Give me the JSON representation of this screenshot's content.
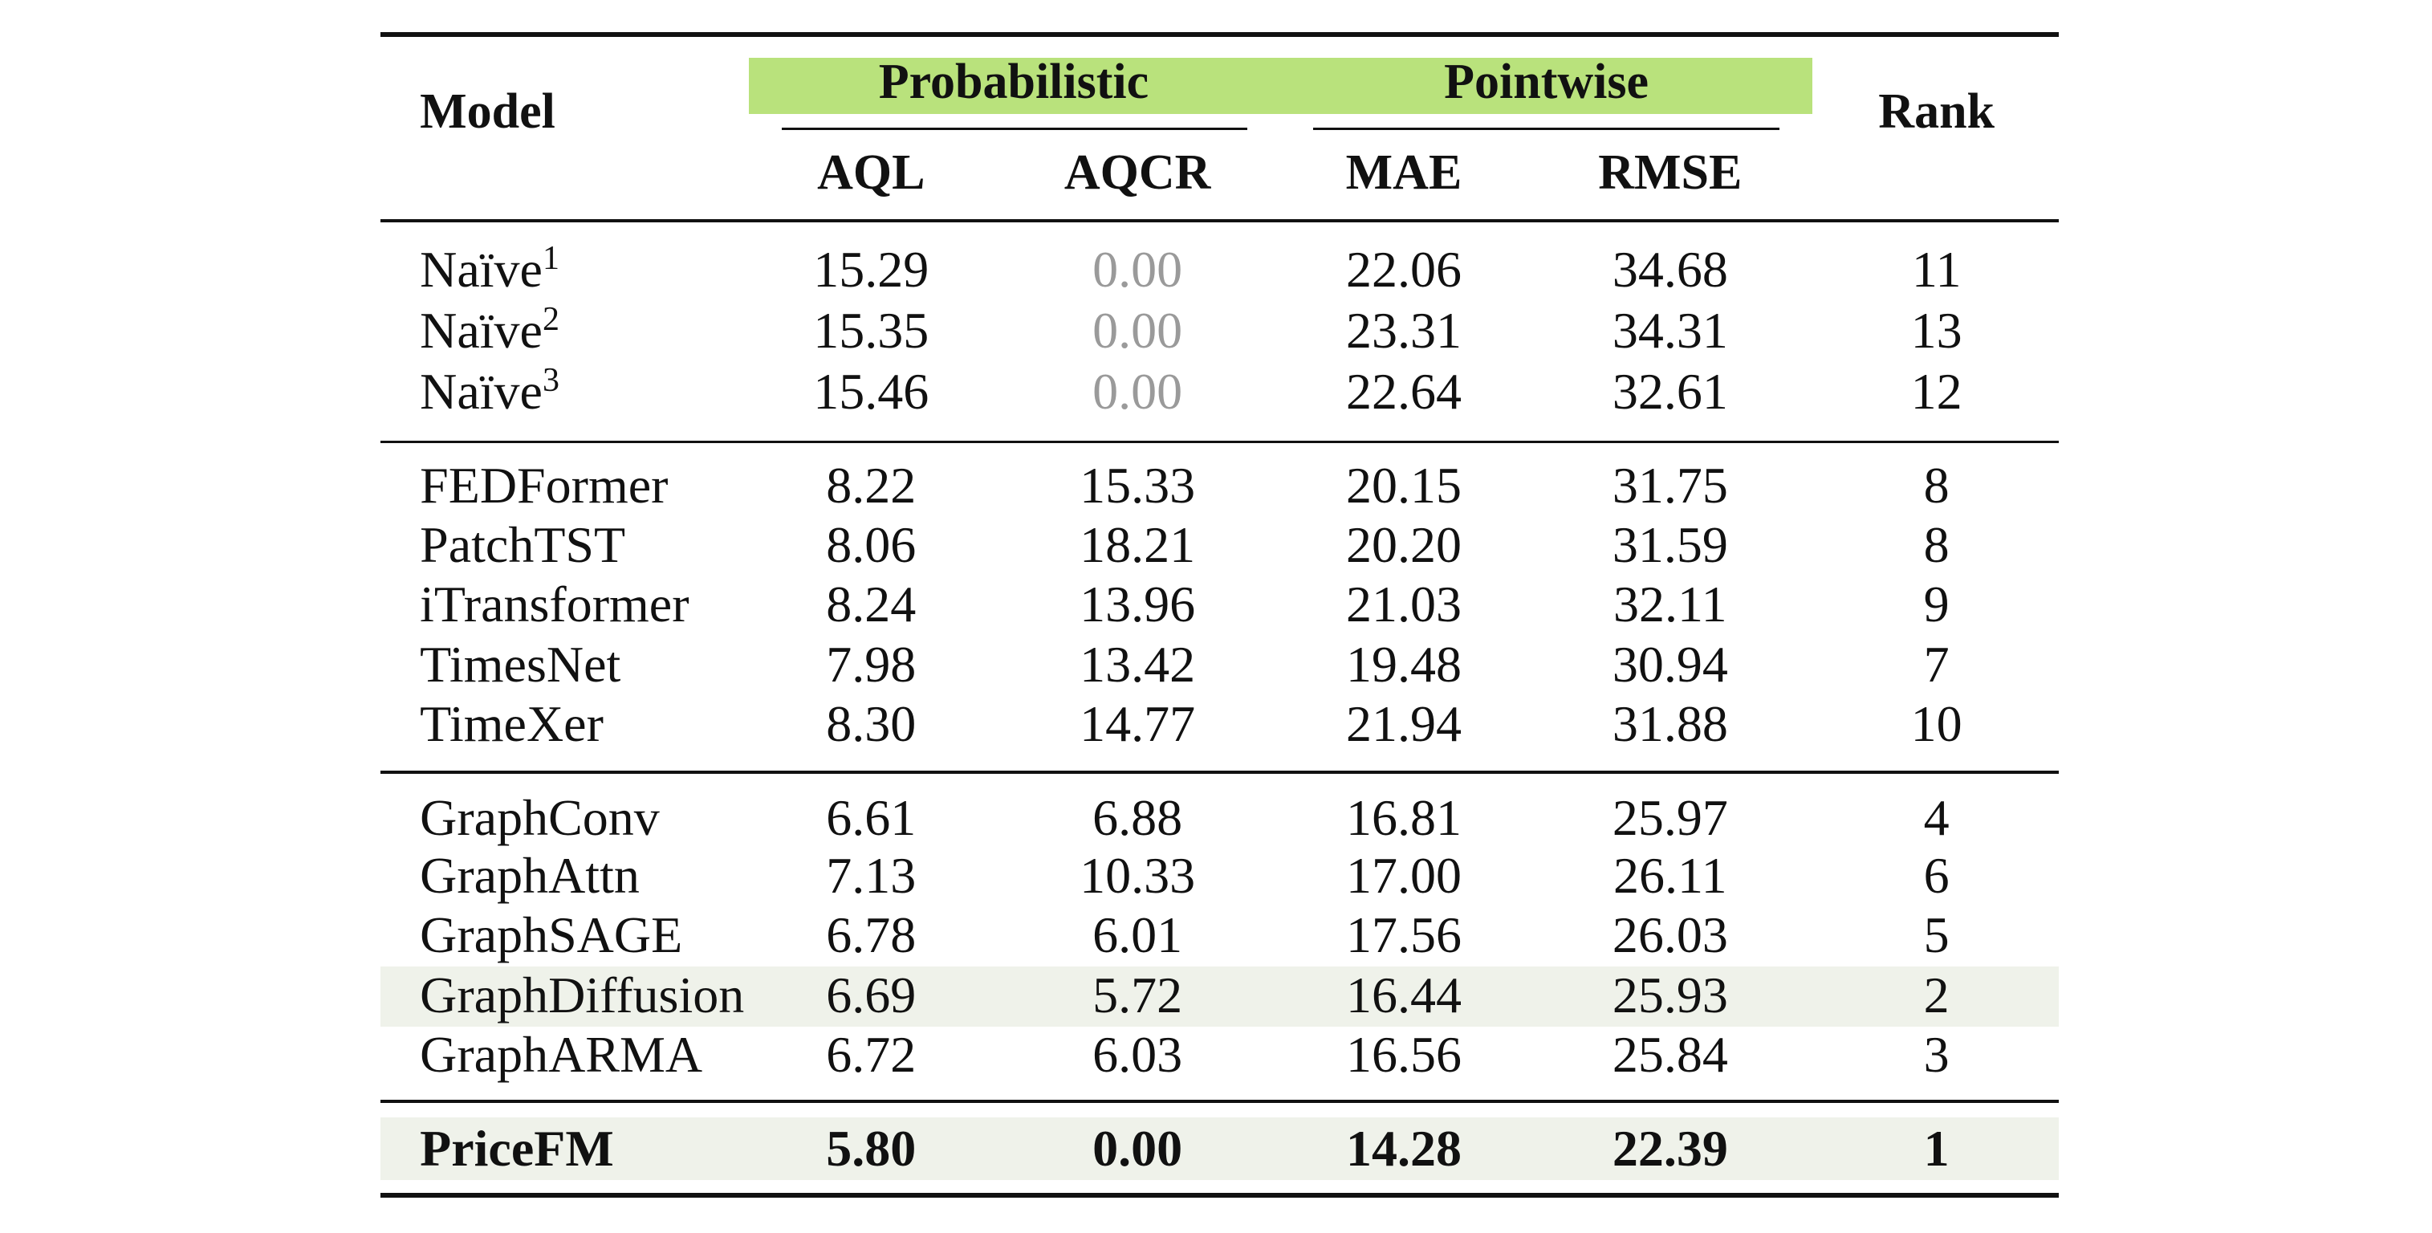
{
  "table": {
    "header": {
      "model": "Model",
      "groups": [
        "Probabilistic",
        "Pointwise"
      ],
      "metrics": [
        "AQL",
        "AQCR",
        "MAE",
        "RMSE"
      ],
      "rank": "Rank"
    },
    "sections": [
      [
        {
          "model": "Naïve",
          "note": "1",
          "cells": [
            "15.29",
            "0.00",
            "22.06",
            "34.68"
          ],
          "rank": "11"
        },
        {
          "model": "Naïve",
          "note": "2",
          "cells": [
            "15.35",
            "0.00",
            "23.31",
            "34.31"
          ],
          "rank": "13"
        },
        {
          "model": "Naïve",
          "note": "3",
          "cells": [
            "15.46",
            "0.00",
            "22.64",
            "32.61"
          ],
          "rank": "12"
        }
      ],
      [
        {
          "model": "FEDFormer",
          "cells": [
            "8.22",
            "15.33",
            "20.15",
            "31.75"
          ],
          "rank": "8"
        },
        {
          "model": "PatchTST",
          "cells": [
            "8.06",
            "18.21",
            "20.20",
            "31.59"
          ],
          "rank": "8"
        },
        {
          "model": "iTransformer",
          "cells": [
            "8.24",
            "13.96",
            "21.03",
            "32.11"
          ],
          "rank": "9"
        },
        {
          "model": "TimesNet",
          "cells": [
            "7.98",
            "13.42",
            "19.48",
            "30.94"
          ],
          "rank": "7"
        },
        {
          "model": "TimeXer",
          "cells": [
            "8.30",
            "14.77",
            "21.94",
            "31.88"
          ],
          "rank": "10"
        }
      ],
      [
        {
          "model": "GraphConv",
          "cells": [
            "6.61",
            "6.88",
            "16.81",
            "25.97"
          ],
          "rank": "4"
        },
        {
          "model": "GraphAttn",
          "cells": [
            "7.13",
            "10.33",
            "17.00",
            "26.11"
          ],
          "rank": "6"
        },
        {
          "model": "GraphSAGE",
          "cells": [
            "6.78",
            "6.01",
            "17.56",
            "26.03"
          ],
          "rank": "5"
        },
        {
          "model": "GraphDiffusion",
          "cells": [
            "6.69",
            "5.72",
            "16.44",
            "25.93"
          ],
          "rank": "2"
        },
        {
          "model": "GraphARMA",
          "cells": [
            "6.72",
            "6.03",
            "16.56",
            "25.84"
          ],
          "rank": "3"
        }
      ],
      [
        {
          "model": "PriceFM",
          "cells": [
            "5.80",
            "0.00",
            "14.28",
            "22.39"
          ],
          "rank": "1"
        }
      ]
    ]
  }
}
